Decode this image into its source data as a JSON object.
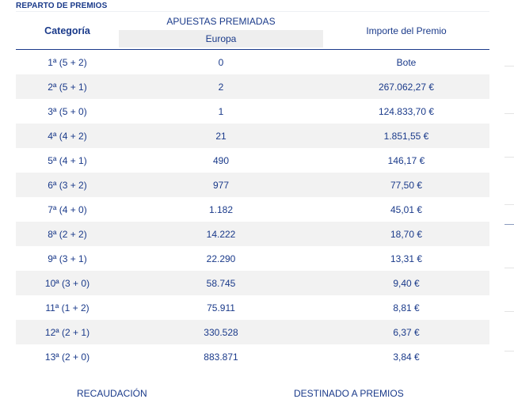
{
  "section_title": "REPARTO DE PREMIOS",
  "headers": {
    "categoria": "Categoría",
    "apuestas": "APUESTAS PREMIADAS",
    "europa": "Europa",
    "importe": "Importe del Premio"
  },
  "rows": [
    {
      "categoria": "1ª (5 + 2)",
      "apuestas": "0",
      "importe": "Bote"
    },
    {
      "categoria": "2ª (5 + 1)",
      "apuestas": "2",
      "importe": "267.062,27 €"
    },
    {
      "categoria": "3ª (5 + 0)",
      "apuestas": "1",
      "importe": "124.833,70 €"
    },
    {
      "categoria": "4ª (4 + 2)",
      "apuestas": "21",
      "importe": "1.851,55 €"
    },
    {
      "categoria": "5ª (4 + 1)",
      "apuestas": "490",
      "importe": "146,17 €"
    },
    {
      "categoria": "6ª (3 + 2)",
      "apuestas": "977",
      "importe": "77,50 €"
    },
    {
      "categoria": "7ª (4 + 0)",
      "apuestas": "1.182",
      "importe": "45,01 €"
    },
    {
      "categoria": "8ª (2 + 2)",
      "apuestas": "14.222",
      "importe": "18,70 €"
    },
    {
      "categoria": "9ª (3 + 1)",
      "apuestas": "22.290",
      "importe": "13,31 €"
    },
    {
      "categoria": "10ª (3 + 0)",
      "apuestas": "58.745",
      "importe": "9,40 €"
    },
    {
      "categoria": "11ª (1 + 2)",
      "apuestas": "75.911",
      "importe": "8,81 €"
    },
    {
      "categoria": "12ª (2 + 1)",
      "apuestas": "330.528",
      "importe": "6,37 €"
    },
    {
      "categoria": "13ª (2 + 0)",
      "apuestas": "883.871",
      "importe": "3,84 €"
    }
  ],
  "footer": {
    "recaudacion": "RECAUDACIÓN",
    "destinado": "DESTINADO A PREMIOS"
  },
  "colors": {
    "text": "#1a3a8a",
    "stripe": "#f2f2f2",
    "header_cell": "#eeeeee"
  }
}
